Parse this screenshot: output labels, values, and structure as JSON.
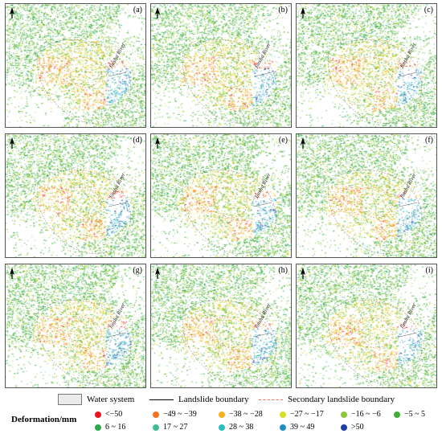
{
  "panels": [
    {
      "label": "(a)"
    },
    {
      "label": "(b)"
    },
    {
      "label": "(c)"
    },
    {
      "label": "(d)"
    },
    {
      "label": "(e)"
    },
    {
      "label": "(f)"
    },
    {
      "label": "(g)"
    },
    {
      "label": "(h)"
    },
    {
      "label": "(i)"
    }
  ],
  "river_label": "Jinsha River",
  "legend": {
    "water": "Water system",
    "landslide": "Landslide boundary",
    "secondary": "Secondary landslide boundary",
    "title": "Deformation/mm"
  },
  "classes": [
    {
      "label": "<−50",
      "color": "#e8141e"
    },
    {
      "label": "−49 ~ −39",
      "color": "#f4721e"
    },
    {
      "label": "−38 ~ −28",
      "color": "#f6b21e"
    },
    {
      "label": "−27 ~ −17",
      "color": "#d9df28"
    },
    {
      "label": "−16 ~ −6",
      "color": "#8cc63e"
    },
    {
      "label": "−5 ~ 5",
      "color": "#3fae3a"
    },
    {
      "label": "6 ~ 16",
      "color": "#2fa84a"
    },
    {
      "label": "17 ~ 27",
      "color": "#3fbf8f"
    },
    {
      "label": "28 ~ 38",
      "color": "#2fbcc2"
    },
    {
      "label": "39 ~ 49",
      "color": "#1f8fc8"
    },
    {
      "label": ">50",
      "color": "#1f3f9f"
    }
  ]
}
